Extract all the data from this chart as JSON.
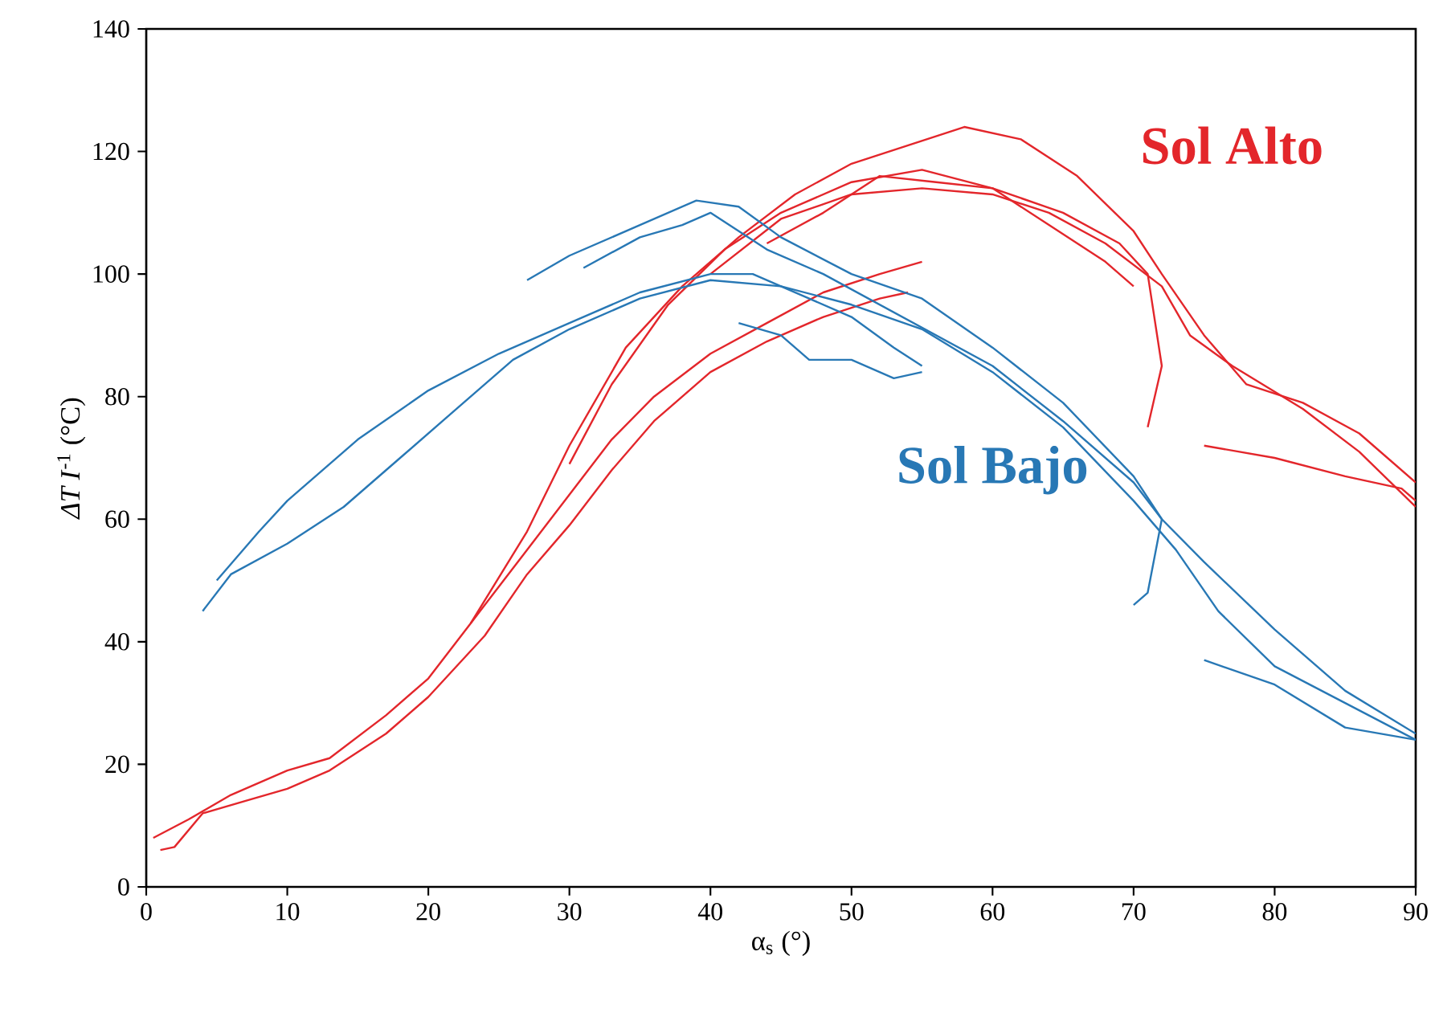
{
  "chart_data": {
    "type": "line",
    "xlabel": "α$_{s}$ (°)",
    "ylabel": "*ΔT I*$^{-1}$ (°C)",
    "xlim": [
      0,
      90
    ],
    "ylim": [
      0,
      140
    ],
    "xticks": [
      0,
      10,
      20,
      30,
      40,
      50,
      60,
      70,
      80,
      90
    ],
    "yticks": [
      0,
      20,
      40,
      60,
      80,
      100,
      120,
      140
    ],
    "grid": false,
    "legend": false,
    "marker": "none",
    "line_style": "solid",
    "series": [
      {
        "name": "Sol Alto",
        "color": "#e3262b",
        "x": [
          0.5,
          3,
          6,
          10,
          13,
          17,
          20,
          23,
          27,
          30,
          33,
          36,
          40,
          44,
          48,
          52,
          55
        ],
        "values": [
          8,
          11,
          15,
          19,
          21,
          28,
          34,
          43,
          55,
          64,
          73,
          80,
          87,
          92,
          97,
          100,
          102
        ]
      },
      {
        "color": "#e3262b",
        "x": [
          1,
          2,
          4,
          7,
          10,
          13,
          17,
          20,
          24,
          27,
          30,
          33,
          36,
          40,
          44,
          48,
          52,
          54
        ],
        "values": [
          6,
          6.5,
          12,
          14,
          16,
          19,
          25,
          31,
          41,
          51,
          59,
          68,
          76,
          84,
          89,
          93,
          96,
          97
        ]
      },
      {
        "color": "#e3262b",
        "x": [
          23,
          27,
          30,
          34,
          38,
          42,
          46,
          50,
          54,
          58,
          62,
          66,
          70,
          72,
          75,
          78,
          82,
          86,
          90
        ],
        "values": [
          43,
          58,
          72,
          88,
          98,
          106,
          113,
          118,
          121,
          124,
          122,
          116,
          107,
          100,
          90,
          82,
          79,
          74,
          66
        ]
      },
      {
        "color": "#e3262b",
        "x": [
          30,
          33,
          37,
          41,
          45,
          50,
          55,
          60,
          65,
          69,
          71,
          72,
          71
        ],
        "values": [
          69,
          82,
          95,
          104,
          110,
          115,
          117,
          114,
          110,
          105,
          100,
          85,
          75
        ]
      },
      {
        "color": "#e3262b",
        "x": [
          40,
          45,
          50,
          55,
          60,
          64,
          68,
          72,
          74,
          77,
          82,
          86,
          90
        ],
        "values": [
          100,
          109,
          113,
          114,
          113,
          110,
          105,
          98,
          90,
          85,
          78,
          71,
          62
        ]
      },
      {
        "color": "#e3262b",
        "x": [
          44,
          48,
          52,
          56,
          60,
          64,
          68,
          70
        ],
        "values": [
          105,
          110,
          116,
          115,
          114,
          108,
          102,
          98
        ]
      },
      {
        "color": "#e3262b",
        "x": [
          75,
          80,
          85,
          89,
          90
        ],
        "values": [
          72,
          70,
          67,
          65,
          63
        ]
      },
      {
        "name": "Sol Bajo",
        "color": "#2878b5",
        "x": [
          4,
          6,
          10,
          14,
          18,
          22,
          26,
          30,
          35,
          40,
          45,
          50,
          55,
          60,
          65,
          70,
          73,
          76,
          80,
          85,
          90
        ],
        "values": [
          45,
          51,
          56,
          62,
          70,
          78,
          86,
          91,
          96,
          99,
          98,
          95,
          91,
          84,
          75,
          63,
          55,
          45,
          36,
          30,
          24
        ]
      },
      {
        "color": "#2878b5",
        "x": [
          5,
          8,
          10,
          15,
          20,
          25,
          30,
          35,
          40,
          43,
          47,
          50,
          53,
          55
        ],
        "values": [
          50,
          58,
          63,
          73,
          81,
          87,
          92,
          97,
          100,
          100,
          96,
          93,
          88,
          85
        ]
      },
      {
        "color": "#2878b5",
        "x": [
          27,
          30,
          35,
          39,
          42,
          45,
          50,
          55,
          60,
          65,
          70,
          72,
          71,
          70
        ],
        "values": [
          99,
          103,
          108,
          112,
          111,
          106,
          100,
          96,
          88,
          79,
          67,
          60,
          48,
          46
        ]
      },
      {
        "color": "#2878b5",
        "x": [
          31,
          35,
          38,
          40,
          44,
          48,
          52,
          56,
          60,
          65,
          70,
          72,
          75,
          80,
          85,
          90
        ],
        "values": [
          101,
          106,
          108,
          110,
          104,
          100,
          95,
          90,
          85,
          76,
          66,
          60,
          53,
          42,
          32,
          25
        ]
      },
      {
        "color": "#2878b5",
        "x": [
          42,
          45,
          47,
          50,
          53,
          55
        ],
        "values": [
          92,
          90,
          86,
          86,
          83,
          84
        ]
      },
      {
        "color": "#2878b5",
        "x": [
          75,
          80,
          85,
          90
        ],
        "values": [
          37,
          33,
          26,
          24
        ]
      }
    ]
  }
}
